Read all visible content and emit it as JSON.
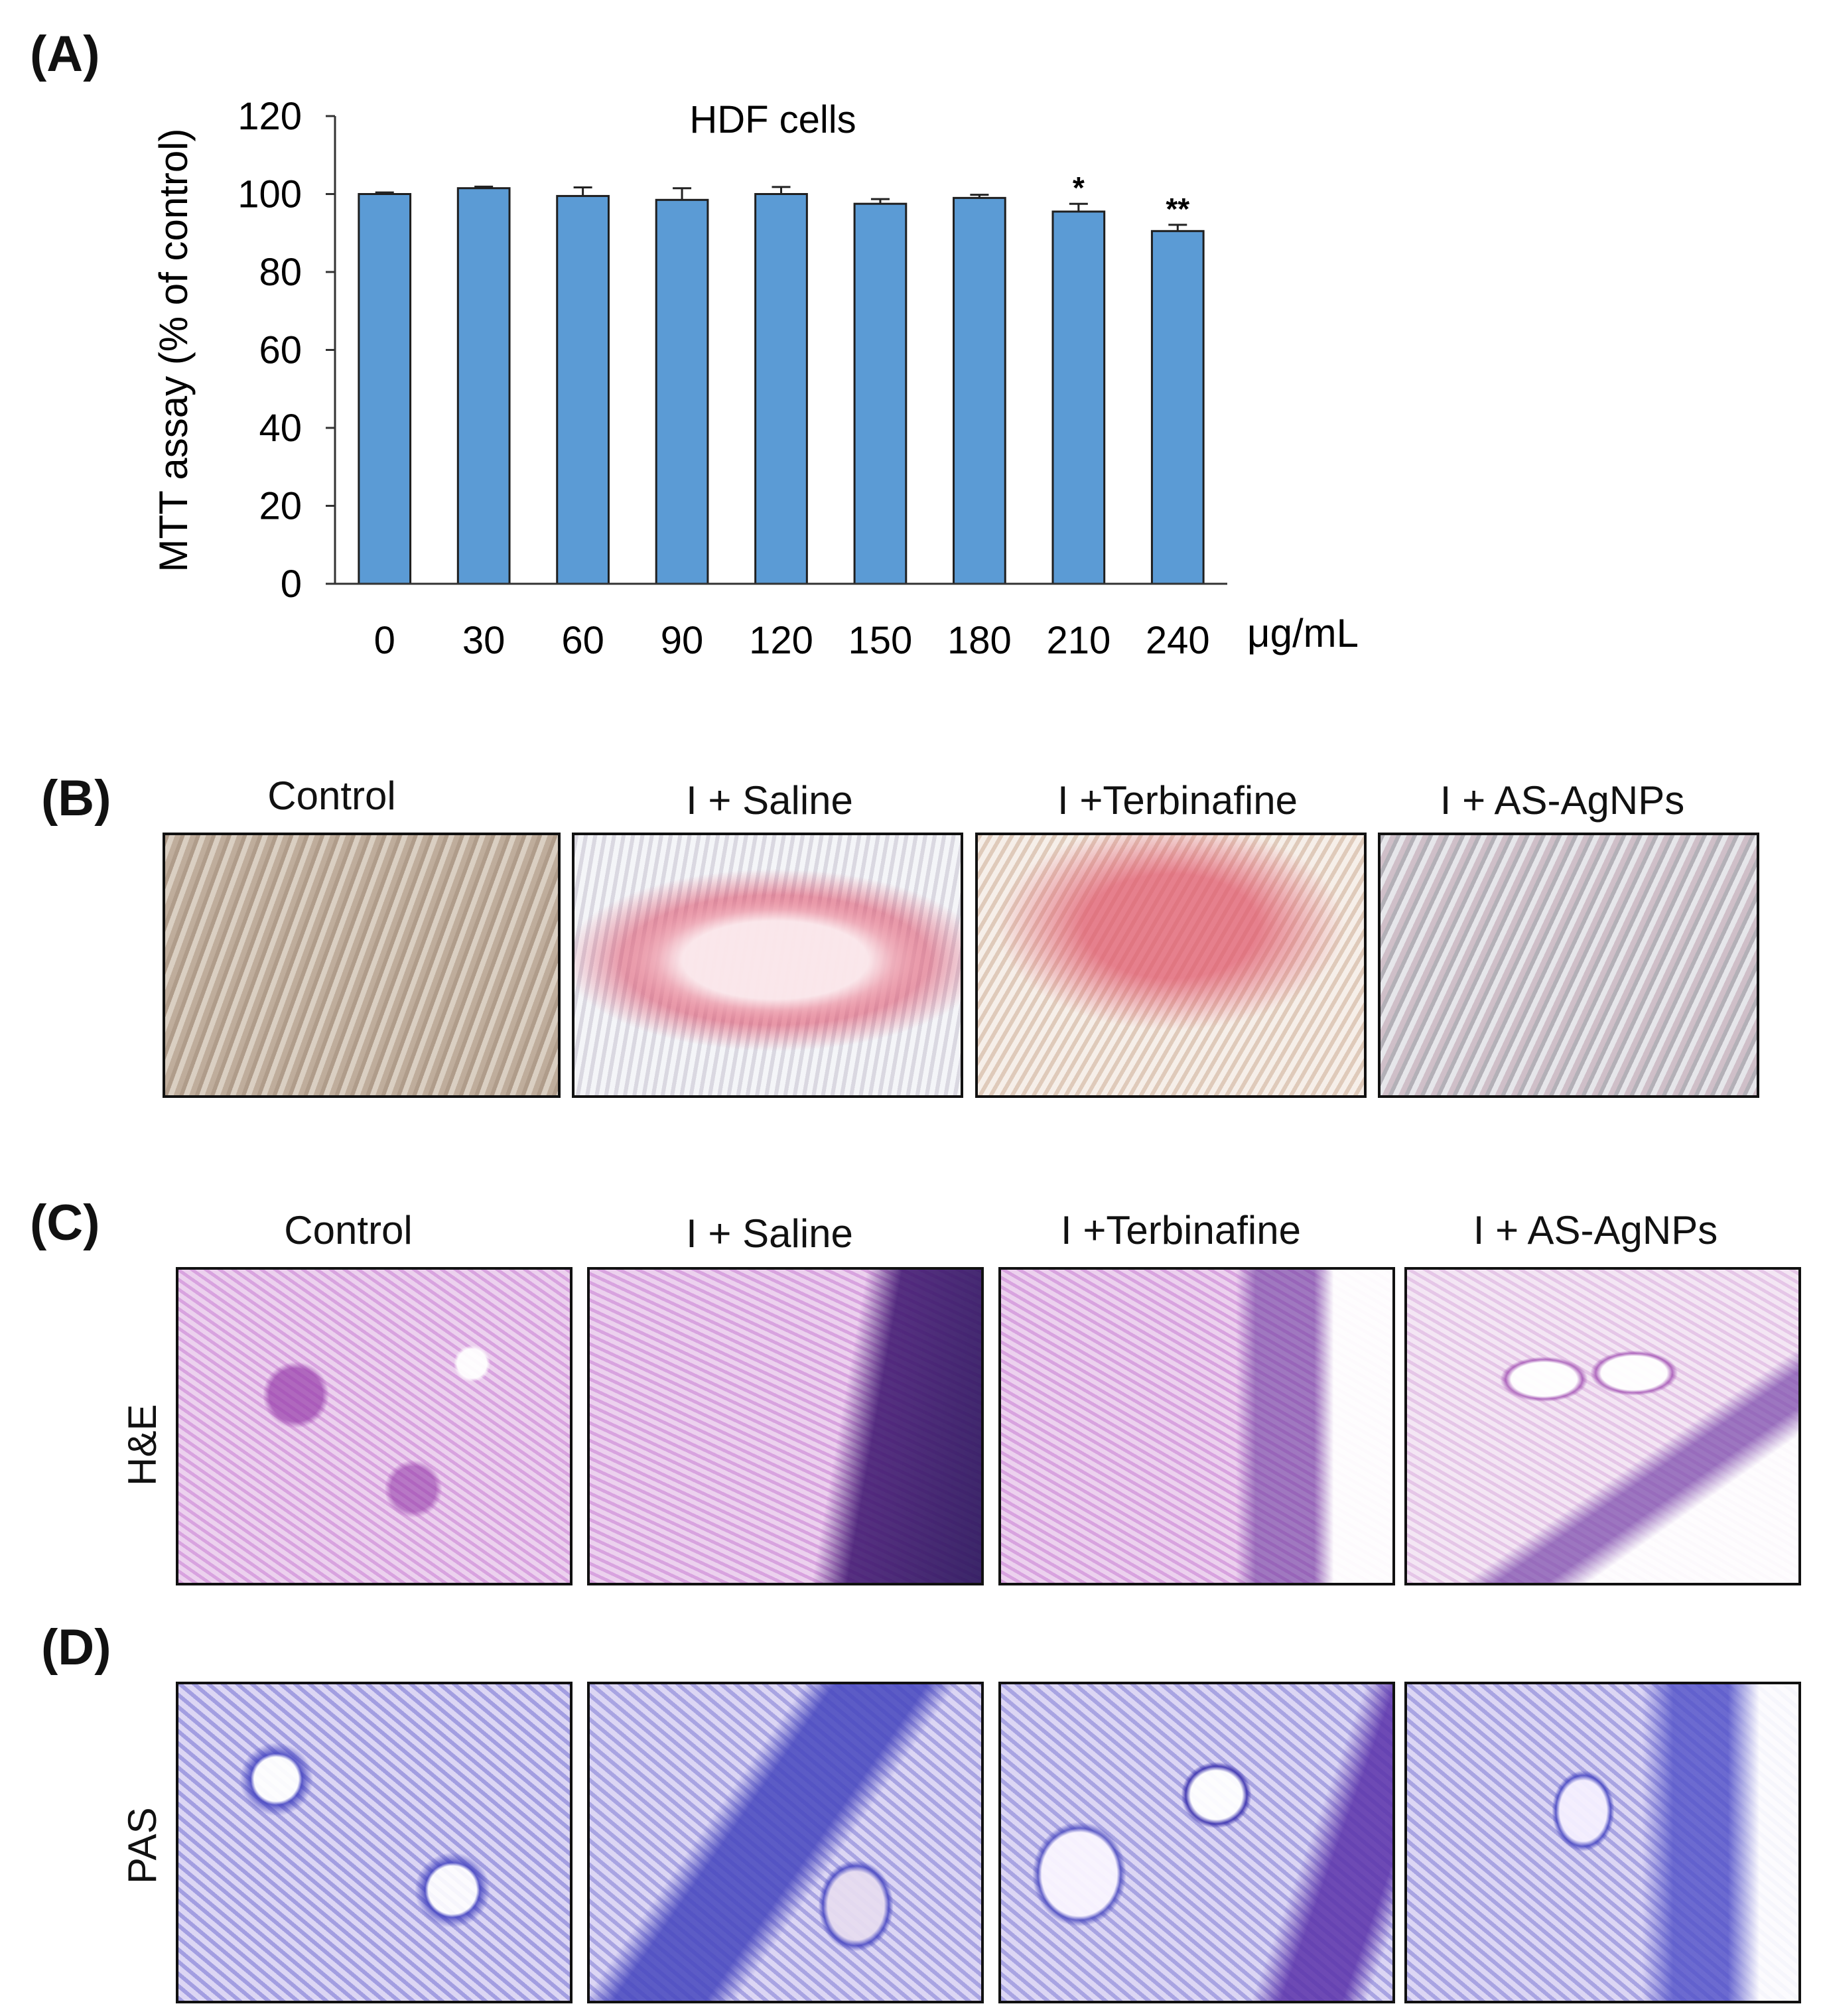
{
  "panels": {
    "a": "(A)",
    "b": "(B)",
    "c": "(C)",
    "d": "(D)"
  },
  "chart_data": {
    "type": "bar",
    "title": "HDF cells",
    "xlabel": "μg/mL",
    "ylabel": "MTT assay (% of control)",
    "ylim": [
      0,
      120
    ],
    "yticks": [
      0,
      20,
      40,
      60,
      80,
      100,
      120
    ],
    "categories": [
      "0",
      "30",
      "60",
      "90",
      "120",
      "150",
      "180",
      "210",
      "240"
    ],
    "values": [
      100,
      101.5,
      99.5,
      98.5,
      100,
      97.5,
      99,
      95.5,
      90.5
    ],
    "errors": [
      0.4,
      0.4,
      2.2,
      3.0,
      1.8,
      1.2,
      0.8,
      2.0,
      1.6
    ],
    "significance": [
      "",
      "",
      "",
      "",
      "",
      "",
      "",
      "*",
      "**"
    ],
    "bar_color": "#5b9bd5"
  },
  "groups": {
    "panel_b": [
      "Control",
      "I + Saline",
      "I +Terbinafine",
      "I + AS-AgNPs"
    ],
    "panel_c": [
      "Control",
      "I + Saline",
      "I +Terbinafine",
      "I + AS-AgNPs"
    ]
  },
  "row_labels": {
    "he": "H&E",
    "pas": "PAS"
  }
}
